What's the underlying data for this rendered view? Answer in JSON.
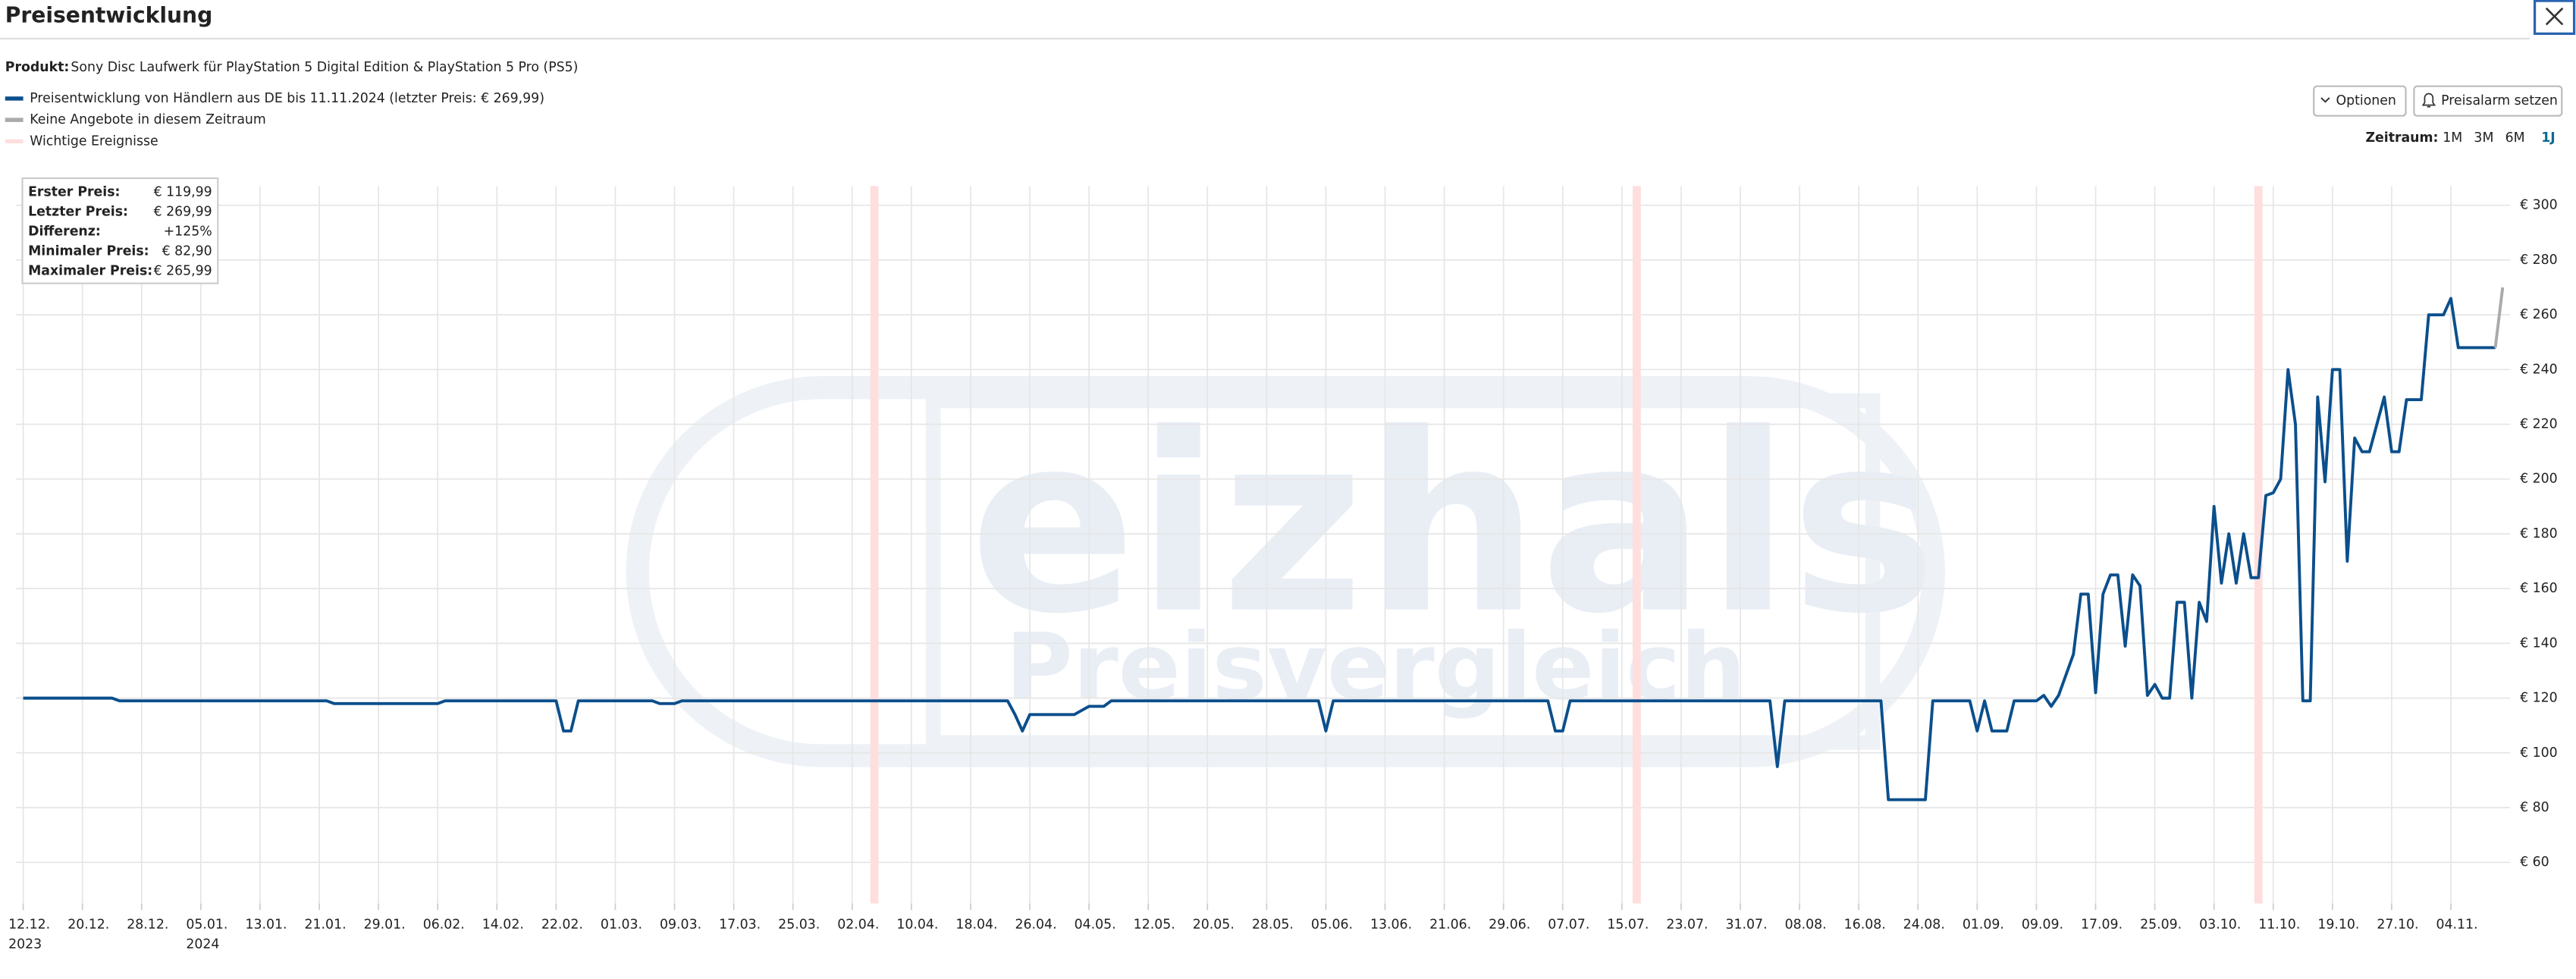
{
  "header": {
    "title": "Preisentwicklung"
  },
  "product": {
    "label": "Produkt:",
    "name": "Sony Disc Laufwerk für PlayStation 5 Digital Edition & PlayStation 5 Pro (PS5)"
  },
  "buttons": [
    "Optionen",
    "Preisalarm setzen"
  ],
  "range": {
    "label": "Zeitraum:",
    "options": [
      "1M",
      "3M",
      "6M",
      "1J"
    ]
  },
  "stats": [
    [
      "Erster Preis:",
      "€ 119,99"
    ],
    [
      "Letzter Preis:",
      "€ 269,99"
    ],
    [
      "Differenz:",
      "+125%"
    ],
    [
      "Minimaler Preis:",
      "€ 82,90"
    ],
    [
      "Maximaler Preis:",
      "€ 265,99"
    ]
  ],
  "watermark": {
    "word": "eizhals",
    "tagline": "Preisvergleich"
  },
  "chart_data": {
    "type": "line",
    "x": [
      "2023-12-12",
      "2023-12-24",
      "2023-12-25",
      "2024-01-22",
      "2024-01-23",
      "2024-02-06",
      "2024-02-07",
      "2024-02-22",
      "2024-02-23",
      "2024-02-24",
      "2024-02-25",
      "2024-03-06",
      "2024-03-07",
      "2024-03-09",
      "2024-03-10",
      "2024-04-23",
      "2024-04-24",
      "2024-04-25",
      "2024-04-26",
      "2024-05-02",
      "2024-05-04",
      "2024-05-06",
      "2024-05-07",
      "2024-06-04",
      "2024-06-05",
      "2024-06-06",
      "2024-07-05",
      "2024-07-06",
      "2024-07-07",
      "2024-07-08",
      "2024-08-04",
      "2024-08-05",
      "2024-08-06",
      "2024-08-19",
      "2024-08-20",
      "2024-08-25",
      "2024-08-26",
      "2024-08-31",
      "2024-09-01",
      "2024-09-02",
      "2024-09-03",
      "2024-09-05",
      "2024-09-06",
      "2024-09-09",
      "2024-09-10",
      "2024-09-11",
      "2024-09-12",
      "2024-09-14",
      "2024-09-15",
      "2024-09-16",
      "2024-09-17",
      "2024-09-18",
      "2024-09-19",
      "2024-09-20",
      "2024-09-21",
      "2024-09-22",
      "2024-09-23",
      "2024-09-24",
      "2024-09-25",
      "2024-09-26",
      "2024-09-27",
      "2024-09-28",
      "2024-09-29",
      "2024-09-30",
      "2024-10-01",
      "2024-10-02",
      "2024-10-03",
      "2024-10-04",
      "2024-10-05",
      "2024-10-06",
      "2024-10-07",
      "2024-10-08",
      "2024-10-09",
      "2024-10-10",
      "2024-10-11",
      "2024-10-12",
      "2024-10-13",
      "2024-10-14",
      "2024-10-15",
      "2024-10-16",
      "2024-10-17",
      "2024-10-18",
      "2024-10-19",
      "2024-10-20",
      "2024-10-21",
      "2024-10-22",
      "2024-10-23",
      "2024-10-24",
      "2024-10-25",
      "2024-10-26",
      "2024-10-27",
      "2024-10-28",
      "2024-10-29",
      "2024-10-31",
      "2024-11-01",
      "2024-11-03",
      "2024-11-04",
      "2024-11-05",
      "2024-11-10",
      "2024-11-11"
    ],
    "series": [
      {
        "name": "Preisentwicklung von Händlern aus DE bis 11.11.2024 (letzter Preis: € 269,99)",
        "color": "#0b4f8c",
        "values": [
          119.99,
          119.99,
          118.99,
          118.99,
          117.99,
          117.99,
          118.99,
          118.99,
          107.99,
          107.99,
          118.99,
          118.99,
          117.99,
          117.99,
          118.99,
          118.99,
          113.99,
          107.99,
          113.99,
          113.99,
          116.99,
          116.99,
          118.99,
          118.99,
          107.99,
          118.99,
          118.99,
          107.99,
          107.99,
          118.99,
          118.99,
          94.99,
          118.99,
          118.99,
          82.9,
          82.9,
          118.99,
          118.99,
          107.99,
          118.99,
          107.99,
          107.99,
          118.99,
          118.99,
          120.99,
          116.99,
          120.99,
          135.99,
          157.99,
          157.99,
          121.99,
          157.99,
          164.99,
          164.99,
          138.99,
          164.99,
          160.99,
          120.99,
          124.99,
          119.99,
          119.99,
          154.99,
          154.99,
          119.99,
          154.99,
          147.99,
          189.99,
          161.99,
          179.99,
          161.99,
          179.99,
          163.99,
          163.99,
          193.99,
          194.99,
          199.99,
          239.99,
          219.99,
          118.99,
          118.99,
          229.99,
          198.99,
          239.99,
          239.99,
          169.99,
          214.99,
          209.99,
          209.99,
          219.99,
          229.99,
          209.99,
          209.99,
          228.99,
          228.99,
          259.99,
          259.99,
          265.99,
          247.99,
          247.99,
          null
        ]
      },
      {
        "name": "Keine Angebote in diesem Zeitraum",
        "color": "#aaaaaa",
        "values": [
          null,
          null,
          null,
          null,
          null,
          null,
          null,
          null,
          null,
          null,
          null,
          null,
          null,
          null,
          null,
          null,
          null,
          null,
          null,
          null,
          null,
          null,
          null,
          null,
          null,
          null,
          null,
          null,
          null,
          null,
          null,
          null,
          null,
          null,
          null,
          null,
          null,
          null,
          null,
          null,
          null,
          null,
          null,
          null,
          null,
          null,
          null,
          null,
          null,
          null,
          null,
          null,
          null,
          null,
          null,
          null,
          null,
          null,
          null,
          null,
          null,
          null,
          null,
          null,
          null,
          null,
          null,
          null,
          null,
          null,
          null,
          null,
          null,
          null,
          null,
          null,
          null,
          null,
          null,
          null,
          null,
          null,
          null,
          null,
          null,
          null,
          null,
          null,
          null,
          null,
          null,
          null,
          null,
          null,
          null,
          null,
          null,
          null,
          247.99,
          269.99
        ]
      }
    ],
    "events": {
      "name": "Wichtige Ereignisse",
      "color": "#ffdede",
      "dates": [
        "2024-04-05",
        "2024-07-17",
        "2024-10-09"
      ]
    },
    "xlim": [
      "2023-12-11",
      "2024-11-12"
    ],
    "xticks": [
      {
        "value": "2023-12-12",
        "label": "12.12.",
        "year": "2023"
      },
      {
        "value": "2023-12-20",
        "label": "20.12."
      },
      {
        "value": "2023-12-28",
        "label": "28.12."
      },
      {
        "value": "2024-01-05",
        "label": "05.01.",
        "year": "2024"
      },
      {
        "value": "2024-01-13",
        "label": "13.01."
      },
      {
        "value": "2024-01-21",
        "label": "21.01."
      },
      {
        "value": "2024-01-29",
        "label": "29.01."
      },
      {
        "value": "2024-02-06",
        "label": "06.02."
      },
      {
        "value": "2024-02-14",
        "label": "14.02."
      },
      {
        "value": "2024-02-22",
        "label": "22.02."
      },
      {
        "value": "2024-03-01",
        "label": "01.03."
      },
      {
        "value": "2024-03-09",
        "label": "09.03."
      },
      {
        "value": "2024-03-17",
        "label": "17.03."
      },
      {
        "value": "2024-03-25",
        "label": "25.03."
      },
      {
        "value": "2024-04-02",
        "label": "02.04."
      },
      {
        "value": "2024-04-10",
        "label": "10.04."
      },
      {
        "value": "2024-04-18",
        "label": "18.04."
      },
      {
        "value": "2024-04-26",
        "label": "26.04."
      },
      {
        "value": "2024-05-04",
        "label": "04.05."
      },
      {
        "value": "2024-05-12",
        "label": "12.05."
      },
      {
        "value": "2024-05-20",
        "label": "20.05."
      },
      {
        "value": "2024-05-28",
        "label": "28.05."
      },
      {
        "value": "2024-06-05",
        "label": "05.06."
      },
      {
        "value": "2024-06-13",
        "label": "13.06."
      },
      {
        "value": "2024-06-21",
        "label": "21.06."
      },
      {
        "value": "2024-06-29",
        "label": "29.06."
      },
      {
        "value": "2024-07-07",
        "label": "07.07."
      },
      {
        "value": "2024-07-15",
        "label": "15.07."
      },
      {
        "value": "2024-07-23",
        "label": "23.07."
      },
      {
        "value": "2024-07-31",
        "label": "31.07."
      },
      {
        "value": "2024-08-08",
        "label": "08.08."
      },
      {
        "value": "2024-08-16",
        "label": "16.08."
      },
      {
        "value": "2024-08-24",
        "label": "24.08."
      },
      {
        "value": "2024-09-01",
        "label": "01.09."
      },
      {
        "value": "2024-09-09",
        "label": "09.09."
      },
      {
        "value": "2024-09-17",
        "label": "17.09."
      },
      {
        "value": "2024-09-25",
        "label": "25.09."
      },
      {
        "value": "2024-10-03",
        "label": "03.10."
      },
      {
        "value": "2024-10-11",
        "label": "11.10."
      },
      {
        "value": "2024-10-19",
        "label": "19.10."
      },
      {
        "value": "2024-10-27",
        "label": "27.10."
      },
      {
        "value": "2024-11-04",
        "label": "04.11."
      }
    ],
    "ylim": [
      45,
      307
    ],
    "yticks": [
      {
        "value": 60,
        "label": "€ 60"
      },
      {
        "value": 80,
        "label": "€ 80"
      },
      {
        "value": 100,
        "label": "€ 100"
      },
      {
        "value": 120,
        "label": "€ 120"
      },
      {
        "value": 140,
        "label": "€ 140"
      },
      {
        "value": 160,
        "label": "€ 160"
      },
      {
        "value": 180,
        "label": "€ 180"
      },
      {
        "value": 200,
        "label": "€ 200"
      },
      {
        "value": 220,
        "label": "€ 220"
      },
      {
        "value": 240,
        "label": "€ 240"
      },
      {
        "value": 260,
        "label": "€ 260"
      },
      {
        "value": 280,
        "label": "€ 280"
      },
      {
        "value": 300,
        "label": "€ 300"
      }
    ],
    "grid": true
  }
}
